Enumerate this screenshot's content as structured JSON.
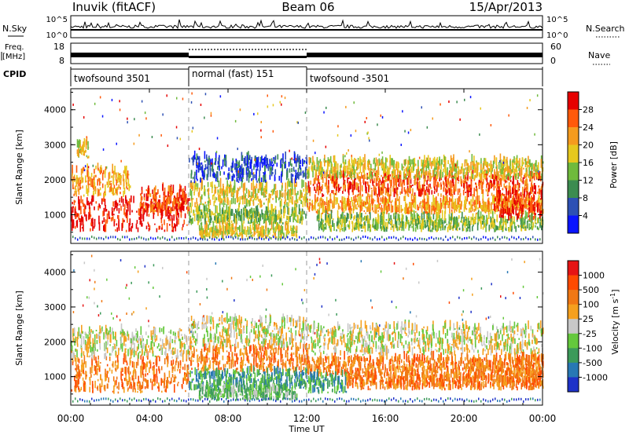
{
  "header": {
    "station": "Inuvik (fitACF)",
    "beam": "Beam 06",
    "date": "15/Apr/2013"
  },
  "top_panels": {
    "nsky_label": "N.Sky",
    "nsky_ticks": [
      "10^5",
      "10^0"
    ],
    "nsearch_label": "N.Search",
    "nsearch_ticks": [
      "10^5",
      "10^0"
    ],
    "freq_label_1": "Freq.",
    "freq_label_2": "[MHz]",
    "freq_ticks": [
      "18",
      "8"
    ],
    "nave_label": "Nave",
    "nave_ticks": [
      "60",
      "0"
    ],
    "cpid_label": "CPID",
    "cpid_segments": [
      {
        "label": "twofsound 3501",
        "start_h": 0,
        "end_h": 6
      },
      {
        "label": "normal (fast) 151",
        "start_h": 6,
        "end_h": 12
      },
      {
        "label": "twofsound -3501",
        "start_h": 12,
        "end_h": 24
      }
    ]
  },
  "power_panel": {
    "ylabel": "Slant Range [km]",
    "yticks": [
      "1000",
      "2000",
      "3000",
      "4000"
    ],
    "colorbar_label": "Power [dB]",
    "colorbar_ticks": [
      "4",
      "8",
      "12",
      "16",
      "20",
      "24",
      "28"
    ],
    "colors": [
      "#0a14ff",
      "#2d50b4",
      "#3c8c50",
      "#6fba3c",
      "#e6c81e",
      "#f59b1e",
      "#ff5a0a",
      "#e60000"
    ]
  },
  "velocity_panel": {
    "ylabel": "Slant Range [km]",
    "yticks": [
      "1000",
      "2000",
      "3000",
      "4000"
    ],
    "colorbar_label": "Velocity [m s",
    "colorbar_label_sup": "-1",
    "colorbar_label_end": "]",
    "colorbar_ticks": [
      "1000",
      "500",
      "100",
      "25",
      "-25",
      "-100",
      "-500",
      "-1000"
    ],
    "colors": [
      "#1e32c8",
      "#2878b4",
      "#3c9a5a",
      "#64c83c",
      "#c8c8c8",
      "#f5a01e",
      "#f07814",
      "#ff4a00",
      "#e61414"
    ]
  },
  "xaxis": {
    "label": "Time UT",
    "ticks": [
      "00:00",
      "04:00",
      "08:00",
      "12:00",
      "16:00",
      "20:00",
      "00:00"
    ]
  },
  "chart_data": [
    {
      "type": "heatmap",
      "name": "Power",
      "xlabel": "Time UT",
      "ylabel": "Slant Range [km]",
      "xlim": [
        0,
        24
      ],
      "ylim": [
        180,
        4600
      ],
      "colorbar_label": "Power [dB]",
      "colorbar_range": [
        0,
        32
      ],
      "bands": [
        {
          "t0": 0,
          "t1": 6,
          "r0": 500,
          "r1": 1400,
          "level": 7
        },
        {
          "t0": 3.5,
          "t1": 6,
          "r0": 1000,
          "r1": 1700,
          "level": 6
        },
        {
          "t0": 0,
          "t1": 3,
          "r0": 1500,
          "r1": 2300,
          "level": 5
        },
        {
          "t0": 0.3,
          "t1": 0.9,
          "r0": 2600,
          "r1": 3000,
          "level": 4
        },
        {
          "t0": 6,
          "t1": 12,
          "r0": 1200,
          "r1": 1800,
          "level": 4
        },
        {
          "t0": 6,
          "t1": 12,
          "r0": 700,
          "r1": 1100,
          "level": 3
        },
        {
          "t0": 6.5,
          "t1": 11.5,
          "r0": 300,
          "r1": 600,
          "level": 4
        },
        {
          "t0": 6,
          "t1": 12,
          "r0": 1900,
          "r1": 2600,
          "level": 1
        },
        {
          "t0": 12,
          "t1": 24,
          "r0": 1500,
          "r1": 2100,
          "level": 6
        },
        {
          "t0": 12,
          "t1": 24,
          "r0": 1000,
          "r1": 1400,
          "level": 5
        },
        {
          "t0": 12,
          "t1": 24,
          "r0": 2000,
          "r1": 2500,
          "level": 4
        },
        {
          "t0": 12.5,
          "t1": 24,
          "r0": 500,
          "r1": 900,
          "level": 3
        },
        {
          "t0": 21.5,
          "t1": 24,
          "r0": 800,
          "r1": 1600,
          "level": 7
        }
      ]
    },
    {
      "type": "heatmap",
      "name": "Velocity",
      "xlabel": "Time UT",
      "ylabel": "Slant Range [km]",
      "xlim": [
        0,
        24
      ],
      "ylim": [
        180,
        4600
      ],
      "colorbar_label": "Velocity [m s-1]",
      "colorbar_levels": [
        1000,
        500,
        100,
        25,
        -25,
        -100,
        -500,
        -1000
      ],
      "bands": [
        {
          "t0": 0,
          "t1": 6,
          "r0": 500,
          "r1": 1500,
          "level": 6
        },
        {
          "t0": 0,
          "t1": 6,
          "r0": 1500,
          "r1": 2300,
          "level": 4
        },
        {
          "t0": 6,
          "t1": 12,
          "r0": 1100,
          "r1": 1800,
          "level": 6
        },
        {
          "t0": 6,
          "t1": 12,
          "r0": 600,
          "r1": 1100,
          "level": 2
        },
        {
          "t0": 6.5,
          "t1": 11.5,
          "r0": 300,
          "r1": 600,
          "level": 3
        },
        {
          "t0": 6,
          "t1": 12,
          "r0": 1800,
          "r1": 2600,
          "level": 4
        },
        {
          "t0": 12,
          "t1": 24,
          "r0": 1600,
          "r1": 2400,
          "level": 4
        },
        {
          "t0": 12,
          "t1": 24,
          "r0": 1000,
          "r1": 1500,
          "level": 6
        },
        {
          "t0": 12,
          "t1": 14,
          "r0": 500,
          "r1": 1000,
          "level": 2
        },
        {
          "t0": 14,
          "t1": 24,
          "r0": 600,
          "r1": 1000,
          "level": 6
        },
        {
          "t0": 21.5,
          "t1": 24,
          "r0": 700,
          "r1": 1500,
          "level": 6
        }
      ]
    }
  ]
}
